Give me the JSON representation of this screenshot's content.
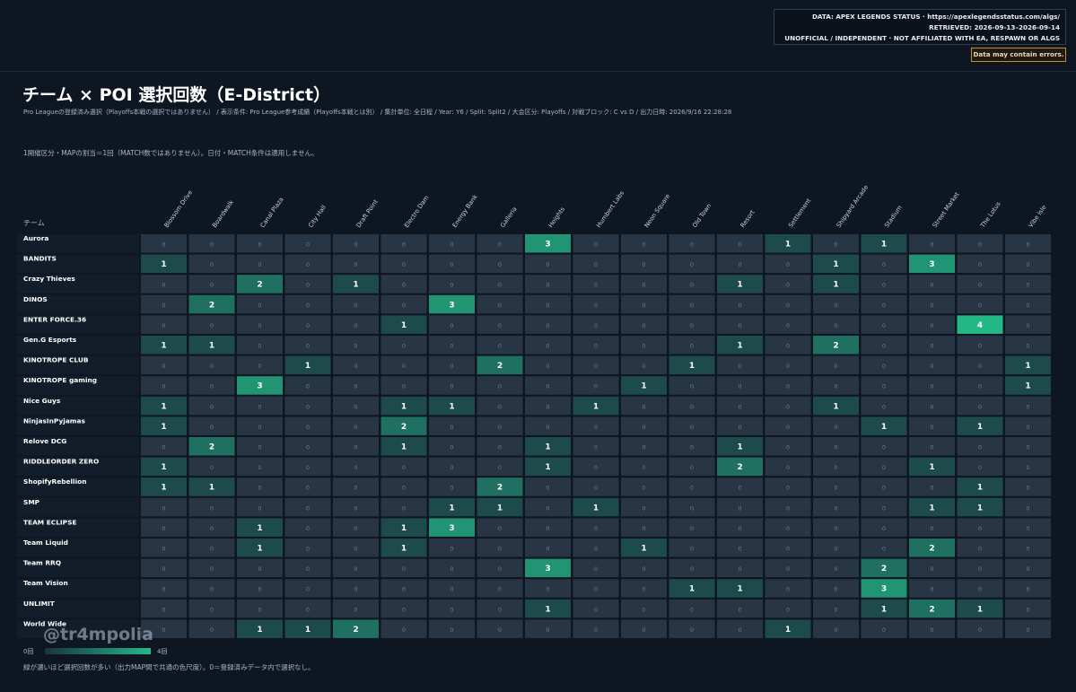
{
  "header": {
    "source_lines": [
      "DATA: APEX LEGENDS STATUS · https://apexlegendsstatus.com/algs/",
      "RETRIEVED: 2026-09-13–2026-09-14",
      "UNOFFICIAL / INDEPENDENT · NOT AFFILIATED WITH EA, RESPAWN OR ALGS"
    ],
    "warning": "Data may contain errors."
  },
  "title": "チーム × POI 選択回数（E-District）",
  "subtitle": "Pro Leagueの登録済み選択（Playoffs本戦の選択ではありません） / 表示条件: Pro League参考成績（Playoffs本戦とは別） / 集計単位: 全日程 / Year: Y6 / Split: Split2 / 大会区分: Playoffs / 対戦ブロック: C vs D / 出力日時: 2026/9/16 22:28:28",
  "note": "1開催区分・MAPの割当＝1回（MATCH数ではありません）。日付・MATCH条件は適用しません。",
  "legend": {
    "min_label": "0回",
    "max_label": "4回"
  },
  "watermark": "@tr4mpolia",
  "caption": "緑が濃いほど選択回数が多い（出力MAP間で共通の色尺度）。0＝登録済みデータ内で選択なし。",
  "chart_data": {
    "type": "heatmap",
    "row_header": "チーム",
    "x": [
      "Blossom Drive",
      "Boardwalk",
      "Canal Plaza",
      "City Hall",
      "Draft Point",
      "Electro Dam",
      "Energy Bank",
      "Galleria",
      "Heights",
      "Humbert Labs",
      "Neon Square",
      "Old Town",
      "Resort",
      "Settlement",
      "Shipyard Arcade",
      "Stadium",
      "Street Market",
      "The Lotus",
      "Vibe Isle"
    ],
    "y": [
      "Aurora",
      "BANDITS",
      "Crazy Thieves",
      "DINOS",
      "ENTER FORCE.36",
      "Gen.G Esports",
      "KINOTROPE CLUB",
      "KINOTROPE gaming",
      "Nice Guys",
      "NinjasInPyjamas",
      "Relove DCG",
      "RIDDLEORDER ZERO",
      "ShopifyRebellion",
      "SMP",
      "TEAM ECLIPSE",
      "Team Liquid",
      "Team RRQ",
      "Team Vision",
      "UNLIMIT",
      "World Wide"
    ],
    "values": [
      [
        0,
        0,
        0,
        0,
        0,
        0,
        0,
        0,
        3,
        0,
        0,
        0,
        0,
        1,
        0,
        1,
        0,
        0,
        0
      ],
      [
        1,
        0,
        0,
        0,
        0,
        0,
        0,
        0,
        0,
        0,
        0,
        0,
        0,
        0,
        1,
        0,
        3,
        0,
        0
      ],
      [
        0,
        0,
        2,
        0,
        1,
        0,
        0,
        0,
        0,
        0,
        0,
        0,
        1,
        0,
        1,
        0,
        0,
        0,
        0
      ],
      [
        0,
        2,
        0,
        0,
        0,
        0,
        3,
        0,
        0,
        0,
        0,
        0,
        0,
        0,
        0,
        0,
        0,
        0,
        0
      ],
      [
        0,
        0,
        0,
        0,
        0,
        1,
        0,
        0,
        0,
        0,
        0,
        0,
        0,
        0,
        0,
        0,
        0,
        4,
        0
      ],
      [
        1,
        1,
        0,
        0,
        0,
        0,
        0,
        0,
        0,
        0,
        0,
        0,
        1,
        0,
        2,
        0,
        0,
        0,
        0
      ],
      [
        0,
        0,
        0,
        1,
        0,
        0,
        0,
        2,
        0,
        0,
        0,
        1,
        0,
        0,
        0,
        0,
        0,
        0,
        1
      ],
      [
        0,
        0,
        3,
        0,
        0,
        0,
        0,
        0,
        0,
        0,
        1,
        0,
        0,
        0,
        0,
        0,
        0,
        0,
        1
      ],
      [
        1,
        0,
        0,
        0,
        0,
        1,
        1,
        0,
        0,
        1,
        0,
        0,
        0,
        0,
        1,
        0,
        0,
        0,
        0
      ],
      [
        1,
        0,
        0,
        0,
        0,
        2,
        0,
        0,
        0,
        0,
        0,
        0,
        0,
        0,
        0,
        1,
        0,
        1,
        0
      ],
      [
        0,
        2,
        0,
        0,
        0,
        1,
        0,
        0,
        1,
        0,
        0,
        0,
        1,
        0,
        0,
        0,
        0,
        0,
        0
      ],
      [
        1,
        0,
        0,
        0,
        0,
        0,
        0,
        0,
        1,
        0,
        0,
        0,
        2,
        0,
        0,
        0,
        1,
        0,
        0
      ],
      [
        1,
        1,
        0,
        0,
        0,
        0,
        0,
        2,
        0,
        0,
        0,
        0,
        0,
        0,
        0,
        0,
        0,
        1,
        0
      ],
      [
        0,
        0,
        0,
        0,
        0,
        0,
        1,
        1,
        0,
        1,
        0,
        0,
        0,
        0,
        0,
        0,
        1,
        1,
        0
      ],
      [
        0,
        0,
        1,
        0,
        0,
        1,
        3,
        0,
        0,
        0,
        0,
        0,
        0,
        0,
        0,
        0,
        0,
        0,
        0
      ],
      [
        0,
        0,
        1,
        0,
        0,
        1,
        0,
        0,
        0,
        0,
        1,
        0,
        0,
        0,
        0,
        0,
        2,
        0,
        0
      ],
      [
        0,
        0,
        0,
        0,
        0,
        0,
        0,
        0,
        3,
        0,
        0,
        0,
        0,
        0,
        0,
        2,
        0,
        0,
        0
      ],
      [
        0,
        0,
        0,
        0,
        0,
        0,
        0,
        0,
        0,
        0,
        0,
        1,
        1,
        0,
        0,
        3,
        0,
        0,
        0
      ],
      [
        0,
        0,
        0,
        0,
        0,
        0,
        0,
        0,
        1,
        0,
        0,
        0,
        0,
        0,
        0,
        1,
        2,
        1,
        0
      ],
      [
        0,
        0,
        1,
        1,
        2,
        0,
        0,
        0,
        0,
        0,
        0,
        0,
        0,
        1,
        0,
        0,
        0,
        0,
        0
      ]
    ],
    "scale": [
      0,
      4
    ],
    "colors": {
      "zero": "#283545",
      "low": "#1d4b4c",
      "high": "#23b987",
      "label_bg": "#131d2a"
    }
  }
}
